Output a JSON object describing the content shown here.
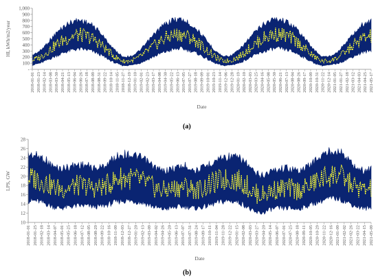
{
  "figure": {
    "caption_a": "(a)",
    "caption_b": "(b)"
  },
  "colors": {
    "series_max": "#0a2472",
    "series_min": "#ffff33",
    "axis": "#8c8c8c",
    "text": "#595959"
  },
  "chart_data": [
    {
      "id": "a",
      "type": "area",
      "title": "",
      "xlabel": "Date",
      "ylabel": "HI, kWh/m2/year",
      "ylim": [
        0,
        1000
      ],
      "yticks": [
        0,
        100,
        200,
        300,
        400,
        500,
        600,
        700,
        800,
        900,
        1000
      ],
      "ytick_labels": [
        "-",
        "100",
        "200",
        "300",
        "400",
        "500",
        "600",
        "700",
        "800",
        "900",
        "1,000"
      ],
      "grid": false,
      "legend": "none",
      "xrange": [
        "2018-01-01",
        "2021-05-30"
      ],
      "xtick_labels": [
        "2018-01-01",
        "2018-01-23",
        "2018-02-14",
        "2018-03-08",
        "2018-03-30",
        "2018-04-21",
        "2018-05-13",
        "2018-06-04",
        "2018-06-26",
        "2018-07-18",
        "2018-08-09",
        "2018-08-31",
        "2018-09-22",
        "2018-10-14",
        "2018-11-05",
        "2018-11-27",
        "2018-12-19",
        "2019-01-10",
        "2019-02-01",
        "2019-02-23",
        "2019-03-17",
        "2019-04-08",
        "2019-04-30",
        "2019-05-22",
        "2019-06-13",
        "2019-07-05",
        "2019-07-27",
        "2019-08-18",
        "2019-09-09",
        "2019-10-01",
        "2019-10-23",
        "2019-11-14",
        "2019-12-06",
        "2019-12-28",
        "2020-01-19",
        "2020-02-10",
        "2020-03-03",
        "2020-03-25",
        "2020-04-16",
        "2020-05-08",
        "2020-05-30",
        "2020-06-21",
        "2020-07-13",
        "2020-08-04",
        "2020-08-26",
        "2020-09-17",
        "2020-10-09",
        "2020-10-31",
        "2020-11-22",
        "2020-12-14",
        "2021-01-05",
        "2021-01-27",
        "2021-02-18",
        "2021-03-12",
        "2021-04-03",
        "2021-04-25",
        "2021-05-17"
      ],
      "series": [
        {
          "x": [
            "2018-01-01",
            "2018-02-01",
            "2018-03-01",
            "2018-04-01",
            "2018-05-01",
            "2018-06-01",
            "2018-07-01",
            "2018-08-01",
            "2018-09-01",
            "2018-10-01",
            "2018-11-01",
            "2018-12-01",
            "2019-01-01",
            "2019-02-01",
            "2019-03-01",
            "2019-04-01",
            "2019-05-01",
            "2019-06-01",
            "2019-07-01",
            "2019-08-01",
            "2019-09-01",
            "2019-10-01",
            "2019-11-01",
            "2019-12-01",
            "2020-01-01",
            "2020-02-01",
            "2020-03-01",
            "2020-04-01",
            "2020-05-01",
            "2020-06-01",
            "2020-07-01",
            "2020-08-01",
            "2020-09-01",
            "2020-10-01",
            "2020-11-01",
            "2020-12-01",
            "2021-01-01",
            "2021-02-01",
            "2021-03-01",
            "2021-04-01",
            "2021-05-01",
            "2021-05-30"
          ],
          "values": [
            250,
            330,
            480,
            640,
            760,
            840,
            850,
            790,
            680,
            500,
            330,
            220,
            230,
            330,
            480,
            650,
            780,
            860,
            870,
            800,
            680,
            510,
            340,
            230,
            240,
            340,
            500,
            660,
            790,
            870,
            870,
            810,
            690,
            520,
            340,
            220,
            230,
            330,
            480,
            650,
            790,
            840
          ]
        },
        {
          "x": [
            "2018-01-01",
            "2018-02-01",
            "2018-03-01",
            "2018-04-01",
            "2018-05-01",
            "2018-06-01",
            "2018-07-01",
            "2018-08-01",
            "2018-09-01",
            "2018-10-01",
            "2018-11-01",
            "2018-12-01",
            "2019-01-01",
            "2019-02-01",
            "2019-03-01",
            "2019-04-01",
            "2019-05-01",
            "2019-06-01",
            "2019-07-01",
            "2019-08-01",
            "2019-09-01",
            "2019-10-01",
            "2019-11-01",
            "2019-12-01",
            "2020-01-01",
            "2020-02-01",
            "2020-03-01",
            "2020-04-01",
            "2020-05-01",
            "2020-06-01",
            "2020-07-01",
            "2020-08-01",
            "2020-09-01",
            "2020-10-01",
            "2020-11-01",
            "2020-12-01",
            "2021-01-01",
            "2021-02-01",
            "2021-03-01",
            "2021-04-01",
            "2021-05-01",
            "2021-05-30"
          ],
          "values": [
            60,
            90,
            140,
            200,
            250,
            290,
            300,
            280,
            230,
            160,
            90,
            50,
            60,
            90,
            140,
            200,
            250,
            290,
            310,
            280,
            230,
            160,
            90,
            50,
            60,
            90,
            150,
            210,
            260,
            300,
            310,
            280,
            230,
            160,
            90,
            50,
            60,
            90,
            140,
            200,
            250,
            270
          ]
        }
      ]
    },
    {
      "id": "b",
      "type": "area",
      "title": "",
      "xlabel": "Date",
      "ylabel": "LPS, GW",
      "ylim": [
        10,
        28
      ],
      "yticks": [
        10,
        12,
        14,
        16,
        18,
        20,
        22,
        24,
        26,
        28
      ],
      "ytick_labels": [
        "10",
        "12",
        "14",
        "16",
        "18",
        "20",
        "22",
        "24",
        "26",
        "28"
      ],
      "grid": false,
      "legend": "none",
      "xrange": [
        "2018-01-01",
        "2021-05-30"
      ],
      "xtick_labels": [
        "2018-01-01",
        "2018-01-25",
        "2018-02-18",
        "2018-03-14",
        "2018-04-07",
        "2018-05-01",
        "2018-05-25",
        "2018-06-18",
        "2018-07-12",
        "2018-08-05",
        "2018-08-29",
        "2018-09-22",
        "2018-10-16",
        "2018-11-09",
        "2018-12-03",
        "2018-12-27",
        "2019-01-20",
        "2019-02-13",
        "2019-03-09",
        "2019-04-02",
        "2019-04-26",
        "2019-05-20",
        "2019-06-13",
        "2019-07-07",
        "2019-07-31",
        "2019-08-24",
        "2019-09-17",
        "2019-10-11",
        "2019-11-04",
        "2019-11-28",
        "2019-12-22",
        "2020-01-15",
        "2020-02-08",
        "2020-03-03",
        "2020-03-27",
        "2020-04-20",
        "2020-05-14",
        "2020-06-07",
        "2020-07-01",
        "2020-07-25",
        "2020-08-18",
        "2020-09-11",
        "2020-10-05",
        "2020-10-29",
        "2020-11-22",
        "2020-12-16",
        "2021-01-09",
        "2021-02-02",
        "2021-02-26",
        "2021-03-22",
        "2021-04-15",
        "2021-05-09"
      ],
      "series": [
        {
          "x": [
            "2018-01-01",
            "2018-02-01",
            "2018-03-01",
            "2018-04-01",
            "2018-05-01",
            "2018-06-01",
            "2018-07-01",
            "2018-08-01",
            "2018-09-01",
            "2018-10-01",
            "2018-11-01",
            "2018-12-01",
            "2019-01-01",
            "2019-02-01",
            "2019-03-01",
            "2019-04-01",
            "2019-05-01",
            "2019-06-01",
            "2019-07-01",
            "2019-08-01",
            "2019-09-01",
            "2019-10-01",
            "2019-11-01",
            "2019-12-01",
            "2020-01-01",
            "2020-02-01",
            "2020-03-01",
            "2020-04-01",
            "2020-05-01",
            "2020-06-01",
            "2020-07-01",
            "2020-08-01",
            "2020-09-01",
            "2020-10-01",
            "2020-11-01",
            "2020-12-01",
            "2021-01-01",
            "2021-02-01",
            "2021-03-01",
            "2021-04-01",
            "2021-05-01",
            "2021-05-30"
          ],
          "values": [
            25.8,
            25.5,
            24.8,
            23.0,
            22.5,
            23.0,
            23.5,
            23.3,
            22.5,
            23.0,
            24.5,
            25.8,
            25.8,
            25.3,
            24.5,
            23.0,
            22.0,
            22.3,
            23.0,
            23.2,
            22.0,
            22.8,
            24.0,
            25.0,
            25.3,
            25.0,
            24.0,
            21.5,
            21.0,
            22.0,
            22.5,
            22.8,
            22.0,
            22.5,
            24.0,
            25.5,
            26.5,
            26.8,
            25.0,
            23.0,
            22.0,
            22.5
          ]
        },
        {
          "x": [
            "2018-01-01",
            "2018-02-01",
            "2018-03-01",
            "2018-04-01",
            "2018-05-01",
            "2018-06-01",
            "2018-07-01",
            "2018-08-01",
            "2018-09-01",
            "2018-10-01",
            "2018-11-01",
            "2018-12-01",
            "2019-01-01",
            "2019-02-01",
            "2019-03-01",
            "2019-04-01",
            "2019-05-01",
            "2019-06-01",
            "2019-07-01",
            "2019-08-01",
            "2019-09-01",
            "2019-10-01",
            "2019-11-01",
            "2019-12-01",
            "2020-01-01",
            "2020-02-01",
            "2020-03-01",
            "2020-04-01",
            "2020-05-01",
            "2020-06-01",
            "2020-07-01",
            "2020-08-01",
            "2020-09-01",
            "2020-10-01",
            "2020-11-01",
            "2020-12-01",
            "2021-01-01",
            "2021-02-01",
            "2021-03-01",
            "2021-04-01",
            "2021-05-01",
            "2021-05-30"
          ],
          "values": [
            14.0,
            14.0,
            13.5,
            12.8,
            12.5,
            12.8,
            13.0,
            13.0,
            12.8,
            13.0,
            13.5,
            14.0,
            14.0,
            13.8,
            13.5,
            12.8,
            12.3,
            12.5,
            12.8,
            12.8,
            12.5,
            12.8,
            13.3,
            13.8,
            14.0,
            13.8,
            13.0,
            11.5,
            11.5,
            12.3,
            12.5,
            12.5,
            12.3,
            12.8,
            13.5,
            14.0,
            14.5,
            14.5,
            13.8,
            13.0,
            12.5,
            12.5
          ]
        }
      ]
    }
  ]
}
